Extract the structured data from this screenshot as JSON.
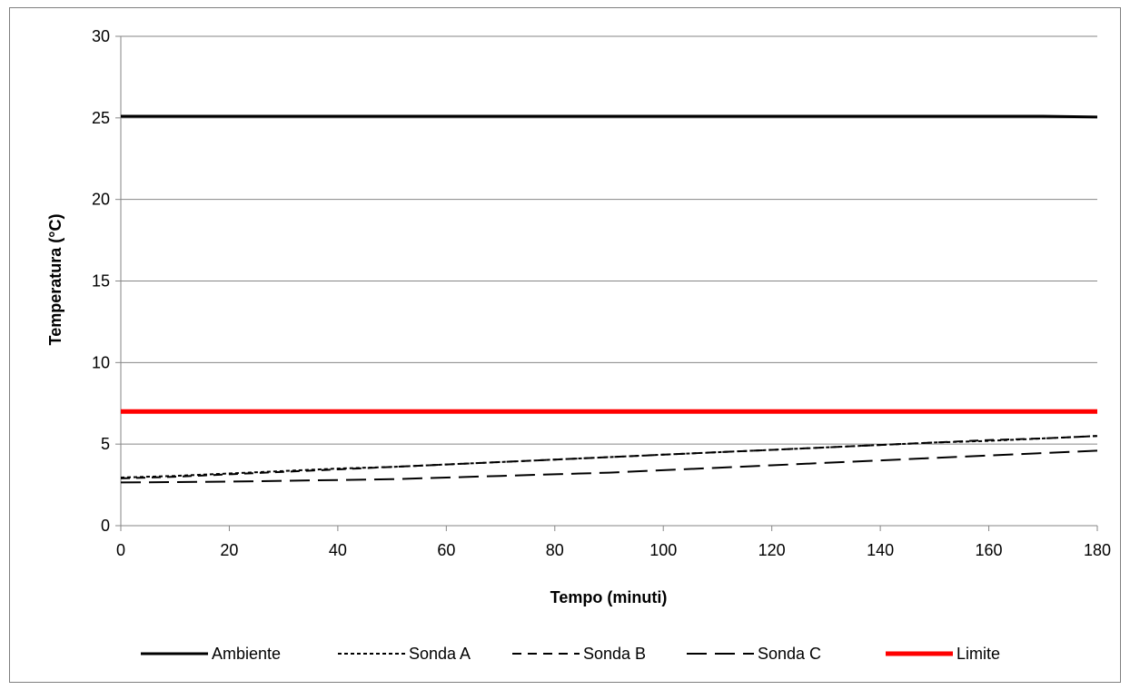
{
  "chart_data": {
    "type": "line",
    "title": "",
    "xlabel": "Tempo (minuti)",
    "ylabel": "Temperatura (°C)",
    "xlim": [
      0,
      180
    ],
    "ylim": [
      0,
      30
    ],
    "xticks": [
      0,
      20,
      40,
      60,
      80,
      100,
      120,
      140,
      160,
      180
    ],
    "yticks": [
      0,
      5,
      10,
      15,
      20,
      25,
      30
    ],
    "grid": "horizontal",
    "legend_position": "bottom",
    "x": [
      0,
      10,
      20,
      30,
      40,
      50,
      60,
      70,
      80,
      90,
      100,
      110,
      120,
      130,
      140,
      150,
      160,
      170,
      180
    ],
    "series": [
      {
        "name": "Ambiente",
        "color": "#000000",
        "style": "solid",
        "values": [
          25.1,
          25.1,
          25.1,
          25.1,
          25.1,
          25.1,
          25.1,
          25.1,
          25.1,
          25.1,
          25.1,
          25.1,
          25.1,
          25.1,
          25.1,
          25.1,
          25.1,
          25.1,
          25.05
        ]
      },
      {
        "name": "Sonda A",
        "color": "#000000",
        "style": "dotted",
        "values": [
          2.95,
          3.05,
          3.2,
          3.35,
          3.5,
          3.6,
          3.75,
          3.9,
          4.05,
          4.2,
          4.35,
          4.5,
          4.65,
          4.8,
          4.95,
          5.1,
          5.2,
          5.35,
          5.5
        ]
      },
      {
        "name": "Sonda B",
        "color": "#000000",
        "style": "dashed",
        "values": [
          2.9,
          3.0,
          3.15,
          3.3,
          3.45,
          3.6,
          3.75,
          3.9,
          4.05,
          4.2,
          4.35,
          4.5,
          4.65,
          4.8,
          4.95,
          5.1,
          5.25,
          5.35,
          5.5
        ]
      },
      {
        "name": "Sonda C",
        "color": "#000000",
        "style": "longdash",
        "values": [
          2.65,
          2.67,
          2.7,
          2.75,
          2.8,
          2.85,
          2.95,
          3.05,
          3.15,
          3.25,
          3.4,
          3.55,
          3.7,
          3.85,
          4.0,
          4.15,
          4.3,
          4.45,
          4.6
        ]
      },
      {
        "name": "Limite",
        "color": "#ff0000",
        "style": "solid-thick",
        "values": [
          7,
          7,
          7,
          7,
          7,
          7,
          7,
          7,
          7,
          7,
          7,
          7,
          7,
          7,
          7,
          7,
          7,
          7,
          7
        ]
      }
    ]
  }
}
